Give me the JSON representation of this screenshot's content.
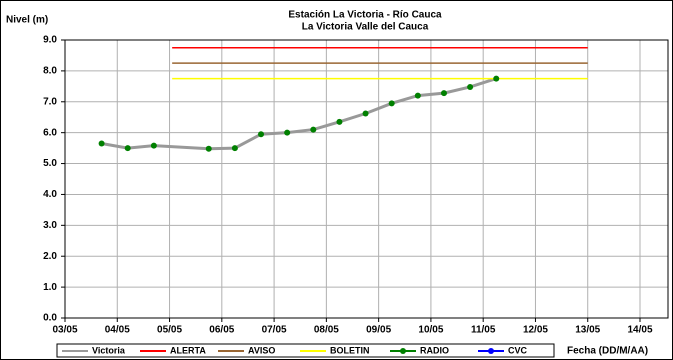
{
  "chart_data": {
    "type": "line",
    "title": "Estación La Victoria - Río Cauca",
    "subtitle": "La Victoria Valle del Cauca",
    "y_label": "Nivel (m)",
    "x_label": "Fecha (DD/M/AA)",
    "xlim": [
      3,
      14
    ],
    "xticks": [
      {
        "value": 3,
        "label": "03/05"
      },
      {
        "value": 4,
        "label": "04/05"
      },
      {
        "value": 5,
        "label": "05/05"
      },
      {
        "value": 6,
        "label": "06/05"
      },
      {
        "value": 7,
        "label": "07/05"
      },
      {
        "value": 8,
        "label": "08/05"
      },
      {
        "value": 9,
        "label": "09/05"
      },
      {
        "value": 10,
        "label": "10/05"
      },
      {
        "value": 11,
        "label": "11/05"
      },
      {
        "value": 12,
        "label": "12/05"
      },
      {
        "value": 13,
        "label": "13/05"
      },
      {
        "value": 14,
        "label": "14/05"
      }
    ],
    "ylim": [
      0,
      9
    ],
    "yticks": [
      {
        "value": 0,
        "label": "0.0"
      },
      {
        "value": 1,
        "label": "1.0"
      },
      {
        "value": 2,
        "label": "2.0"
      },
      {
        "value": 3,
        "label": "3.0"
      },
      {
        "value": 4,
        "label": "4.0"
      },
      {
        "value": 5,
        "label": "5.0"
      },
      {
        "value": 6,
        "label": "6.0"
      },
      {
        "value": 7,
        "label": "7.0"
      },
      {
        "value": 8,
        "label": "8.0"
      },
      {
        "value": 9,
        "label": "9.0"
      }
    ],
    "grid": true,
    "series": [
      {
        "name": "Victoria",
        "color": "#999999",
        "line_width": 3,
        "marker": false,
        "x": [
          3.7,
          4.2,
          4.7,
          5.75,
          6.25,
          6.75,
          7.25,
          7.75,
          8.25,
          8.75,
          9.25,
          9.75,
          10.25,
          10.75,
          11.25
        ],
        "values": [
          5.65,
          5.5,
          5.58,
          5.48,
          5.5,
          5.95,
          6.0,
          6.1,
          6.35,
          6.62,
          6.95,
          7.2,
          7.28,
          7.48,
          7.75
        ]
      },
      {
        "name": "ALERTA",
        "color": "#ff0000",
        "line_width": 1.5,
        "marker": false,
        "x": [
          5.05,
          13
        ],
        "values": [
          8.75,
          8.75
        ]
      },
      {
        "name": "AVISO",
        "color": "#996633",
        "line_width": 1.5,
        "marker": false,
        "x": [
          5.05,
          13
        ],
        "values": [
          8.25,
          8.25
        ]
      },
      {
        "name": "BOLETIN",
        "color": "#ffff00",
        "line_width": 1.5,
        "marker": false,
        "x": [
          5.05,
          13
        ],
        "values": [
          7.75,
          7.75
        ]
      },
      {
        "name": "RADIO",
        "color": "#008000",
        "line_width": 0,
        "marker": true,
        "x": [
          3.7,
          4.2,
          4.7,
          5.75,
          6.25,
          6.75,
          7.25,
          7.75,
          8.25,
          8.75,
          9.25,
          9.75,
          10.25,
          10.75,
          11.25
        ],
        "values": [
          5.65,
          5.5,
          5.58,
          5.48,
          5.5,
          5.95,
          6.0,
          6.1,
          6.35,
          6.62,
          6.95,
          7.2,
          7.28,
          7.48,
          7.75
        ]
      },
      {
        "name": "CVC",
        "color": "#0000ff",
        "line_width": 0,
        "marker": true,
        "x": [],
        "values": []
      }
    ]
  }
}
